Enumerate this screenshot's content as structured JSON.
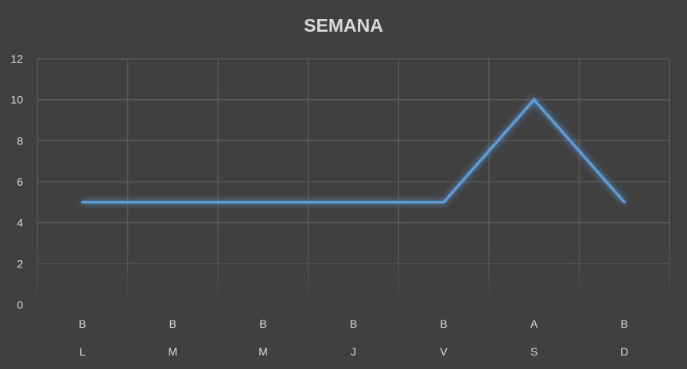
{
  "chart_data": {
    "type": "line",
    "title": "SEMANA",
    "xlabel": "",
    "ylabel": "",
    "ylim": [
      0,
      12
    ],
    "yticks": [
      0,
      2,
      4,
      6,
      8,
      10,
      12
    ],
    "grid": true,
    "legend": "none",
    "categories": [
      {
        "top": "B",
        "bottom": "L"
      },
      {
        "top": "B",
        "bottom": "M"
      },
      {
        "top": "B",
        "bottom": "M"
      },
      {
        "top": "B",
        "bottom": "J"
      },
      {
        "top": "B",
        "bottom": "V"
      },
      {
        "top": "A",
        "bottom": "S"
      },
      {
        "top": "B",
        "bottom": "D"
      }
    ],
    "series": [
      {
        "values": [
          5,
          5,
          5,
          5,
          5,
          10,
          5
        ],
        "color": "#5b9bd5"
      }
    ]
  }
}
